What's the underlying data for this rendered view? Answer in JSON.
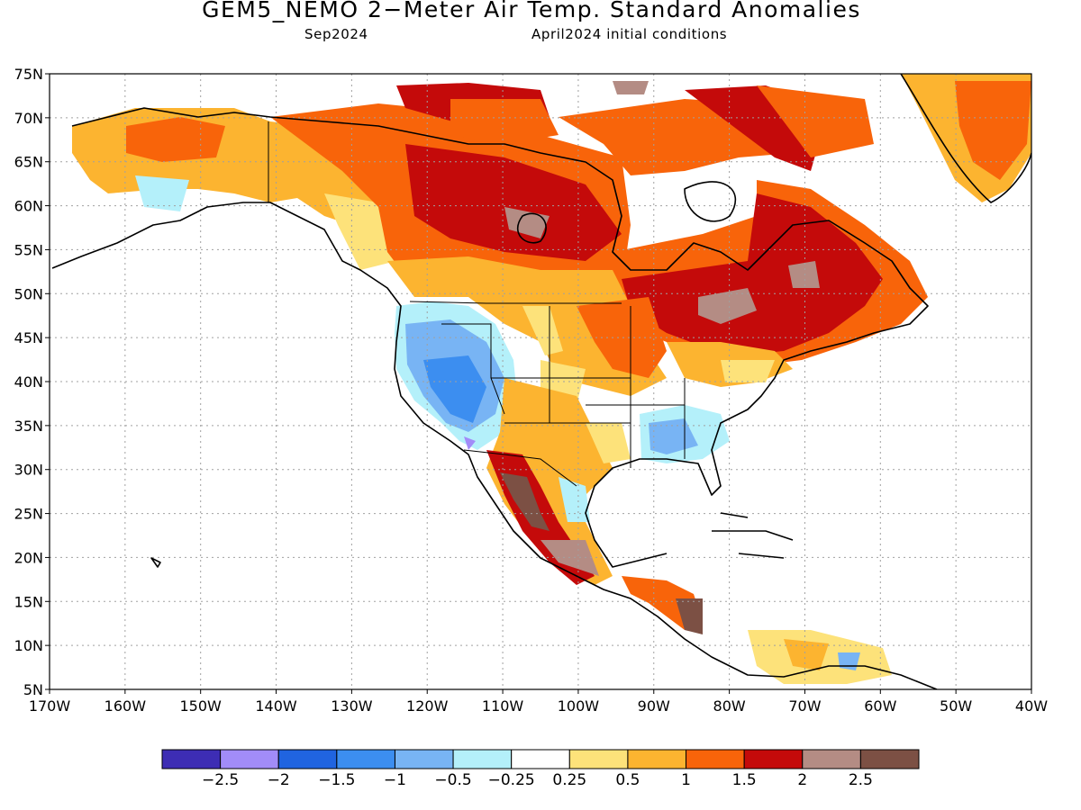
{
  "title": "GEM5_NEMO 2−Meter Air Temp. Standard Anomalies",
  "subtitle_left": "Sep2024",
  "subtitle_right": "April2024 initial conditions",
  "lat_labels": [
    "75N",
    "70N",
    "65N",
    "60N",
    "55N",
    "50N",
    "45N",
    "40N",
    "35N",
    "30N",
    "25N",
    "20N",
    "15N",
    "10N",
    "5N"
  ],
  "lon_labels": [
    "170W",
    "160W",
    "150W",
    "140W",
    "130W",
    "120W",
    "110W",
    "100W",
    "90W",
    "80W",
    "70W",
    "60W",
    "50W",
    "40W"
  ],
  "colorbar": {
    "colors": [
      "#3d2db4",
      "#a28cf8",
      "#2064e0",
      "#3c8ef0",
      "#78b4f4",
      "#b4f0fa",
      "#ffffff",
      "#fde27a",
      "#fcb430",
      "#f8640a",
      "#c40a0a",
      "#b48c84",
      "#7c5044"
    ],
    "labels": [
      "−2.5",
      "−2",
      "−1.5",
      "−1",
      "−0.5",
      "−0.25",
      "0.25",
      "0.5",
      "1",
      "1.5",
      "2",
      "2.5"
    ]
  }
}
